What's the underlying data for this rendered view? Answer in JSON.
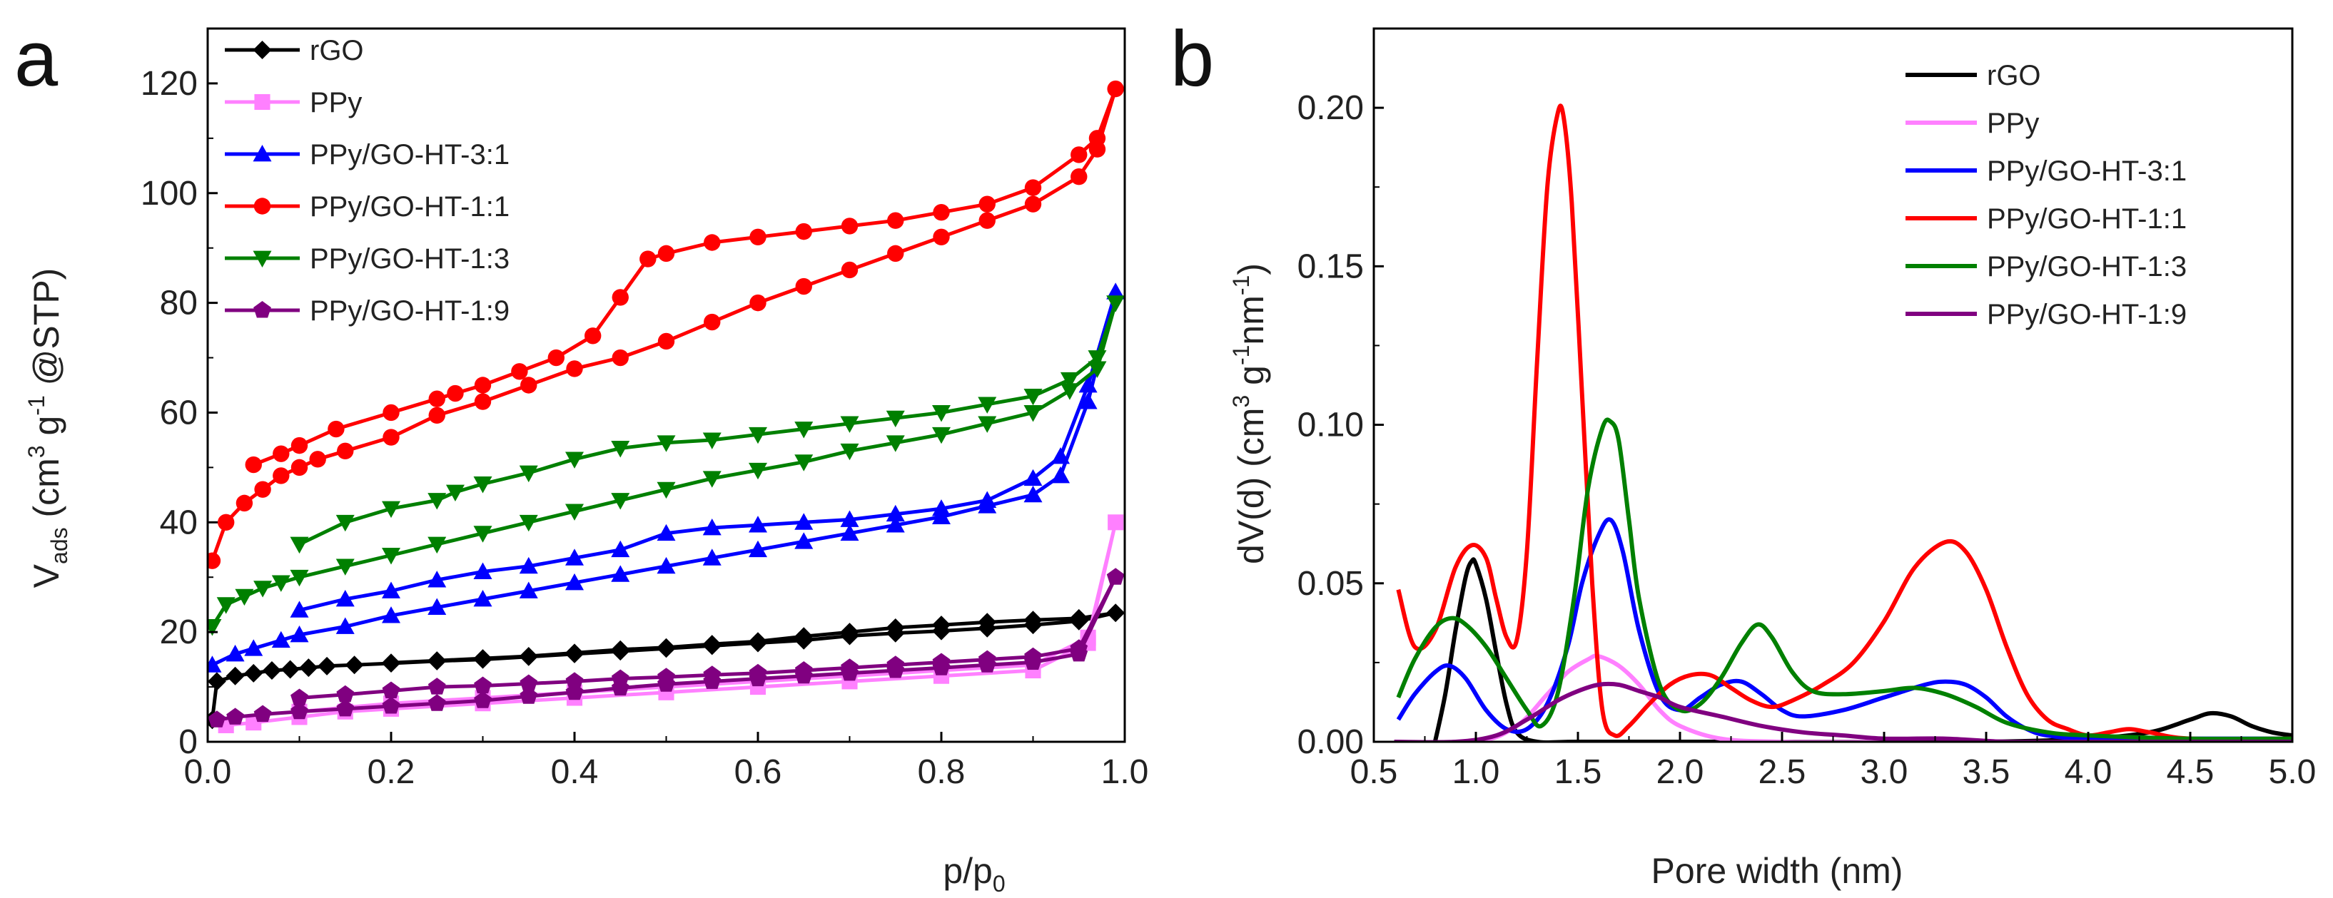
{
  "chart_data": [
    {
      "panel_label": "a",
      "type": "line",
      "xlabel_main": "p/p",
      "xlabel_sub": "0",
      "ylabel_parts": {
        "v": "V",
        "ads": "ads",
        "open": " (cm",
        "three": "3",
        "g": " g",
        "minus1": "-1",
        "tail": " @STP)"
      },
      "xlim": [
        0,
        1.0
      ],
      "ylim": [
        0,
        130
      ],
      "xticks": [
        0.0,
        0.2,
        0.4,
        0.6,
        0.8,
        1.0
      ],
      "xtick_labels": [
        "0.0",
        "0.2",
        "0.4",
        "0.6",
        "0.8",
        "1.0"
      ],
      "yticks": [
        0,
        20,
        40,
        60,
        80,
        100,
        120
      ],
      "ytick_labels": [
        "0",
        "20",
        "40",
        "60",
        "80",
        "100",
        "120"
      ],
      "legend_position": "top-left",
      "series": [
        {
          "name": "rGO",
          "color": "#000000",
          "marker": "diamond",
          "x": [
            0.005,
            0.01,
            0.03,
            0.05,
            0.07,
            0.09,
            0.11,
            0.13,
            0.16,
            0.2,
            0.25,
            0.3,
            0.35,
            0.4,
            0.45,
            0.5,
            0.55,
            0.6,
            0.65,
            0.7,
            0.75,
            0.8,
            0.85,
            0.9,
            0.95,
            0.99,
            0.95,
            0.9,
            0.85,
            0.8,
            0.75,
            0.7,
            0.65,
            0.6,
            0.55,
            0.5,
            0.45,
            0.4,
            0.35,
            0.3,
            0.25,
            0.2
          ],
          "values": [
            4,
            11,
            12,
            12.5,
            13,
            13.2,
            13.5,
            13.8,
            14,
            14.3,
            14.7,
            15,
            15.5,
            16,
            16.5,
            17,
            17.5,
            18,
            18.5,
            19.3,
            19.8,
            20.2,
            20.7,
            21.3,
            22,
            23.5,
            22.5,
            22.2,
            21.8,
            21.3,
            20.8,
            20,
            19.2,
            18.3,
            17.8,
            17.2,
            16.8,
            16.2,
            15.6,
            15.2,
            14.8,
            14.4
          ]
        },
        {
          "name": "PPy",
          "color": "#ff80ff",
          "marker": "square",
          "x": [
            0.02,
            0.05,
            0.1,
            0.15,
            0.2,
            0.3,
            0.4,
            0.5,
            0.6,
            0.7,
            0.8,
            0.9,
            0.96,
            0.99,
            0.96,
            0.9,
            0.8,
            0.7,
            0.6,
            0.5,
            0.4,
            0.3,
            0.2,
            0.1
          ],
          "values": [
            3,
            3.5,
            4.5,
            5.5,
            6,
            7,
            8,
            9,
            10,
            11,
            12,
            13,
            18,
            40,
            19,
            14,
            13,
            12,
            11,
            10,
            9,
            8,
            7,
            5.5
          ]
        },
        {
          "name": "PPy/GO-HT-3:1",
          "color": "#0000ff",
          "marker": "triangle-up",
          "x": [
            0.005,
            0.03,
            0.05,
            0.08,
            0.1,
            0.15,
            0.2,
            0.25,
            0.3,
            0.35,
            0.4,
            0.45,
            0.5,
            0.55,
            0.6,
            0.65,
            0.7,
            0.75,
            0.8,
            0.85,
            0.9,
            0.93,
            0.96,
            0.99,
            0.96,
            0.93,
            0.9,
            0.85,
            0.8,
            0.75,
            0.7,
            0.65,
            0.6,
            0.55,
            0.5,
            0.45,
            0.4,
            0.35,
            0.3,
            0.25,
            0.2,
            0.15,
            0.1
          ],
          "values": [
            14,
            16,
            17,
            18.5,
            19.5,
            21,
            23,
            24.5,
            26,
            27.5,
            29,
            30.5,
            32,
            33.5,
            35,
            36.5,
            38,
            39.5,
            41,
            43,
            45,
            48.5,
            62,
            82,
            65,
            52,
            48,
            44,
            42.5,
            41.5,
            40.5,
            40,
            39.5,
            39,
            38,
            35,
            33.5,
            32,
            31,
            29.5,
            27.5,
            26,
            24
          ]
        },
        {
          "name": "PPy/GO-HT-1:1",
          "color": "#ff0000",
          "marker": "circle",
          "x": [
            0.005,
            0.02,
            0.04,
            0.06,
            0.08,
            0.1,
            0.12,
            0.15,
            0.2,
            0.25,
            0.3,
            0.35,
            0.4,
            0.45,
            0.5,
            0.55,
            0.6,
            0.65,
            0.7,
            0.75,
            0.8,
            0.85,
            0.9,
            0.95,
            0.97,
            0.99,
            0.97,
            0.95,
            0.9,
            0.85,
            0.8,
            0.75,
            0.7,
            0.65,
            0.6,
            0.55,
            0.5,
            0.48,
            0.45,
            0.42,
            0.38,
            0.34,
            0.3,
            0.27,
            0.25,
            0.2,
            0.14,
            0.1,
            0.08,
            0.05
          ],
          "values": [
            33,
            40,
            43.5,
            46,
            48.5,
            50,
            51.5,
            53,
            55.5,
            59.5,
            62,
            65,
            68,
            70,
            73,
            76.5,
            80,
            83,
            86,
            89,
            92,
            95,
            98,
            103,
            108,
            119,
            110,
            107,
            101,
            98,
            96.5,
            95,
            94,
            93,
            92,
            91,
            89,
            88,
            81,
            74,
            70,
            67.5,
            65,
            63.5,
            62.5,
            60,
            57,
            54,
            52.5,
            50.5
          ]
        },
        {
          "name": "PPy/GO-HT-1:3",
          "color": "#008000",
          "marker": "triangle-down",
          "x": [
            0.005,
            0.02,
            0.04,
            0.06,
            0.08,
            0.1,
            0.15,
            0.2,
            0.25,
            0.3,
            0.35,
            0.4,
            0.45,
            0.5,
            0.55,
            0.6,
            0.65,
            0.7,
            0.75,
            0.8,
            0.85,
            0.9,
            0.94,
            0.97,
            0.99,
            0.97,
            0.94,
            0.9,
            0.85,
            0.8,
            0.75,
            0.7,
            0.65,
            0.6,
            0.55,
            0.5,
            0.45,
            0.4,
            0.35,
            0.3,
            0.27,
            0.25,
            0.2,
            0.15,
            0.1
          ],
          "values": [
            21,
            25,
            26.5,
            28,
            29,
            30,
            32,
            34,
            36,
            38,
            40,
            42,
            44,
            46,
            48,
            49.5,
            51,
            53,
            54.5,
            56,
            58,
            60,
            64,
            68,
            80,
            70,
            66,
            63,
            61.5,
            60,
            59,
            58,
            57,
            56,
            55,
            54.5,
            53.5,
            51.5,
            49,
            47,
            45.5,
            44,
            42.5,
            40,
            36
          ]
        },
        {
          "name": "PPy/GO-HT-1:9",
          "color": "#800080",
          "marker": "pentagon",
          "x": [
            0.01,
            0.03,
            0.06,
            0.1,
            0.15,
            0.2,
            0.25,
            0.3,
            0.35,
            0.4,
            0.45,
            0.5,
            0.55,
            0.6,
            0.65,
            0.7,
            0.75,
            0.8,
            0.85,
            0.9,
            0.95,
            0.99,
            0.95,
            0.9,
            0.85,
            0.8,
            0.75,
            0.7,
            0.65,
            0.6,
            0.55,
            0.5,
            0.45,
            0.4,
            0.35,
            0.3,
            0.25,
            0.2,
            0.15,
            0.1
          ],
          "values": [
            4,
            4.5,
            5,
            5.5,
            6,
            6.5,
            7,
            7.5,
            8.3,
            9,
            9.8,
            10.5,
            11,
            11.5,
            12,
            12.5,
            13,
            13.5,
            14,
            14.5,
            16,
            30,
            17,
            15.5,
            15,
            14.5,
            14,
            13.5,
            13,
            12.5,
            12.2,
            11.8,
            11.5,
            11,
            10.6,
            10.2,
            10,
            9.3,
            8.6,
            8
          ]
        }
      ]
    },
    {
      "panel_label": "b",
      "type": "line",
      "xlabel": "Pore width (nm)",
      "ylabel_parts": {
        "main": "dV(d) (cm",
        "three": "3",
        "g": " g",
        "minus1a": "-1",
        "nm": "nm",
        "minus1b": "-1",
        "close": ")"
      },
      "xlim": [
        0.5,
        5.0
      ],
      "ylim": [
        0,
        0.225
      ],
      "xticks": [
        0.5,
        1.0,
        1.5,
        2.0,
        2.5,
        3.0,
        3.5,
        4.0,
        4.5,
        5.0
      ],
      "xtick_labels": [
        "0.5",
        "1.0",
        "1.5",
        "2.0",
        "2.5",
        "3.0",
        "3.5",
        "4.0",
        "4.5",
        "5.0"
      ],
      "yticks": [
        0,
        0.05,
        0.1,
        0.15,
        0.2
      ],
      "ytick_labels": [
        "0.00",
        "0.05",
        "0.10",
        "0.15",
        "0.20"
      ],
      "legend_position": "top-right",
      "series": [
        {
          "name": "rGO",
          "color": "#000000",
          "x": [
            0.8,
            0.85,
            0.9,
            0.95,
            0.98,
            1.0,
            1.05,
            1.1,
            1.15,
            1.2,
            1.3,
            1.5,
            2.0,
            3.0,
            3.5,
            4.0,
            4.3,
            4.5,
            4.6,
            4.7,
            4.8,
            4.9,
            5.0
          ],
          "values": [
            0.0,
            0.015,
            0.035,
            0.052,
            0.057,
            0.056,
            0.045,
            0.028,
            0.012,
            0.003,
            0.0,
            0.0,
            0.0,
            0.0,
            0.0,
            0.001,
            0.003,
            0.007,
            0.009,
            0.008,
            0.005,
            0.003,
            0.002
          ]
        },
        {
          "name": "PPy",
          "color": "#ff80ff",
          "x": [
            0.6,
            1.0,
            1.2,
            1.35,
            1.45,
            1.55,
            1.6,
            1.7,
            1.8,
            1.9,
            2.0,
            2.2,
            2.5,
            3.0
          ],
          "values": [
            0.0,
            0.0,
            0.005,
            0.015,
            0.022,
            0.026,
            0.027,
            0.024,
            0.018,
            0.01,
            0.005,
            0.001,
            0.0,
            0.0
          ]
        },
        {
          "name": "PPy/GO-HT-3:1",
          "color": "#0000ff",
          "x": [
            0.62,
            0.7,
            0.8,
            0.87,
            0.95,
            1.05,
            1.15,
            1.25,
            1.35,
            1.45,
            1.52,
            1.6,
            1.66,
            1.72,
            1.8,
            1.9,
            2.0,
            2.1,
            2.2,
            2.3,
            2.4,
            2.5,
            2.6,
            2.8,
            3.0,
            3.2,
            3.3,
            3.4,
            3.5,
            3.6,
            3.7,
            3.8,
            4.0,
            4.5,
            5.0
          ],
          "values": [
            0.007,
            0.015,
            0.022,
            0.024,
            0.02,
            0.01,
            0.004,
            0.004,
            0.012,
            0.03,
            0.05,
            0.065,
            0.07,
            0.06,
            0.035,
            0.015,
            0.01,
            0.014,
            0.018,
            0.019,
            0.015,
            0.01,
            0.008,
            0.01,
            0.014,
            0.018,
            0.019,
            0.018,
            0.014,
            0.008,
            0.004,
            0.002,
            0.001,
            0.001,
            0.001
          ]
        },
        {
          "name": "PPy/GO-HT-1:1",
          "color": "#ff0000",
          "x": [
            0.62,
            0.7,
            0.8,
            0.9,
            0.98,
            1.05,
            1.1,
            1.15,
            1.2,
            1.25,
            1.3,
            1.35,
            1.4,
            1.43,
            1.47,
            1.52,
            1.57,
            1.62,
            1.68,
            1.75,
            1.85,
            1.95,
            2.05,
            2.15,
            2.25,
            2.35,
            2.45,
            2.55,
            2.7,
            2.85,
            3.0,
            3.15,
            3.3,
            3.4,
            3.5,
            3.6,
            3.7,
            3.8,
            3.9,
            4.0,
            4.1,
            4.2,
            4.3,
            4.5,
            5.0
          ],
          "values": [
            0.048,
            0.03,
            0.035,
            0.055,
            0.062,
            0.058,
            0.045,
            0.033,
            0.032,
            0.06,
            0.12,
            0.175,
            0.198,
            0.197,
            0.17,
            0.11,
            0.05,
            0.01,
            0.002,
            0.005,
            0.012,
            0.018,
            0.021,
            0.021,
            0.017,
            0.013,
            0.011,
            0.013,
            0.018,
            0.025,
            0.038,
            0.055,
            0.063,
            0.06,
            0.048,
            0.03,
            0.015,
            0.007,
            0.004,
            0.002,
            0.003,
            0.004,
            0.003,
            0.001,
            0.001
          ]
        },
        {
          "name": "PPy/GO-HT-1:3",
          "color": "#008000",
          "x": [
            0.62,
            0.7,
            0.8,
            0.88,
            0.95,
            1.05,
            1.15,
            1.25,
            1.32,
            1.4,
            1.48,
            1.55,
            1.62,
            1.66,
            1.7,
            1.75,
            1.8,
            1.9,
            2.0,
            2.1,
            2.2,
            2.3,
            2.38,
            2.45,
            2.55,
            2.65,
            2.8,
            3.0,
            3.15,
            3.3,
            3.45,
            3.6,
            3.8,
            4.0,
            4.5,
            5.0
          ],
          "values": [
            0.014,
            0.026,
            0.036,
            0.039,
            0.037,
            0.03,
            0.02,
            0.01,
            0.005,
            0.015,
            0.045,
            0.08,
            0.099,
            0.101,
            0.095,
            0.07,
            0.045,
            0.018,
            0.01,
            0.012,
            0.02,
            0.031,
            0.037,
            0.033,
            0.022,
            0.016,
            0.015,
            0.016,
            0.017,
            0.015,
            0.011,
            0.006,
            0.003,
            0.002,
            0.001,
            0.001
          ]
        },
        {
          "name": "PPy/GO-HT-1:9",
          "color": "#800080",
          "x": [
            0.6,
            0.9,
            1.1,
            1.25,
            1.4,
            1.5,
            1.6,
            1.7,
            1.8,
            1.9,
            2.0,
            2.2,
            2.4,
            2.6,
            2.8,
            3.0,
            3.3,
            3.6,
            4.0,
            5.0
          ],
          "values": [
            0.0,
            0.0,
            0.002,
            0.007,
            0.013,
            0.016,
            0.018,
            0.018,
            0.016,
            0.014,
            0.011,
            0.008,
            0.005,
            0.003,
            0.002,
            0.001,
            0.001,
            0.0,
            0.0,
            0.0
          ]
        }
      ]
    }
  ]
}
